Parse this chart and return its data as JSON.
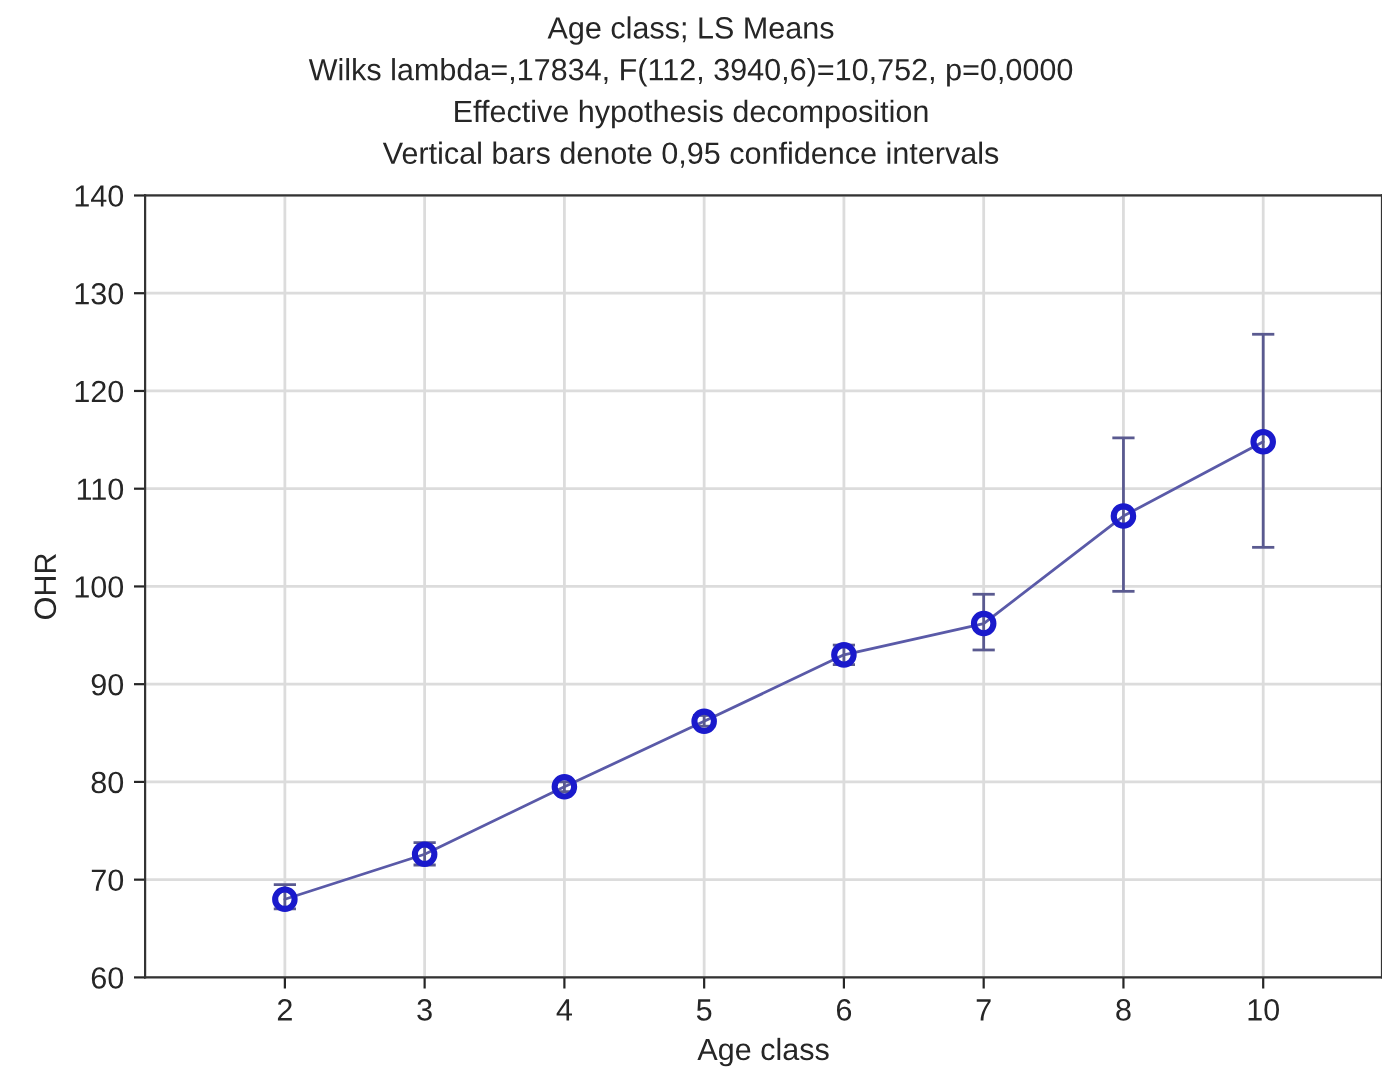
{
  "chart_data": {
    "type": "line",
    "title": "Age class; LS Means\nWilks lambda=,17834, F(112, 3940,6)=10,752, p=0,0000\nEffective hypothesis decomposition\nVertical bars denote 0,95 confidence intervals",
    "xlabel": "Age class",
    "ylabel": "OHR",
    "categories": [
      "2",
      "3",
      "4",
      "5",
      "6",
      "7",
      "8",
      "10"
    ],
    "series": [
      {
        "color": "#1a1acc",
        "values": [
          68.0,
          72.6,
          79.5,
          86.2,
          93.0,
          96.2,
          107.2,
          114.8
        ],
        "errors": [
          [
            67.0,
            69.5
          ],
          [
            71.5,
            73.8
          ],
          [
            79.0,
            80.0
          ],
          [
            85.7,
            86.8
          ],
          [
            92.0,
            94.0
          ],
          [
            93.5,
            99.2
          ],
          [
            99.5,
            115.2
          ],
          [
            104.0,
            125.8
          ]
        ]
      }
    ],
    "ylim": [
      60,
      140
    ],
    "yticks": [
      60,
      70,
      80,
      90,
      100,
      110,
      120,
      130,
      140
    ],
    "grid": true,
    "marker": "circle",
    "line_style": "solid"
  }
}
